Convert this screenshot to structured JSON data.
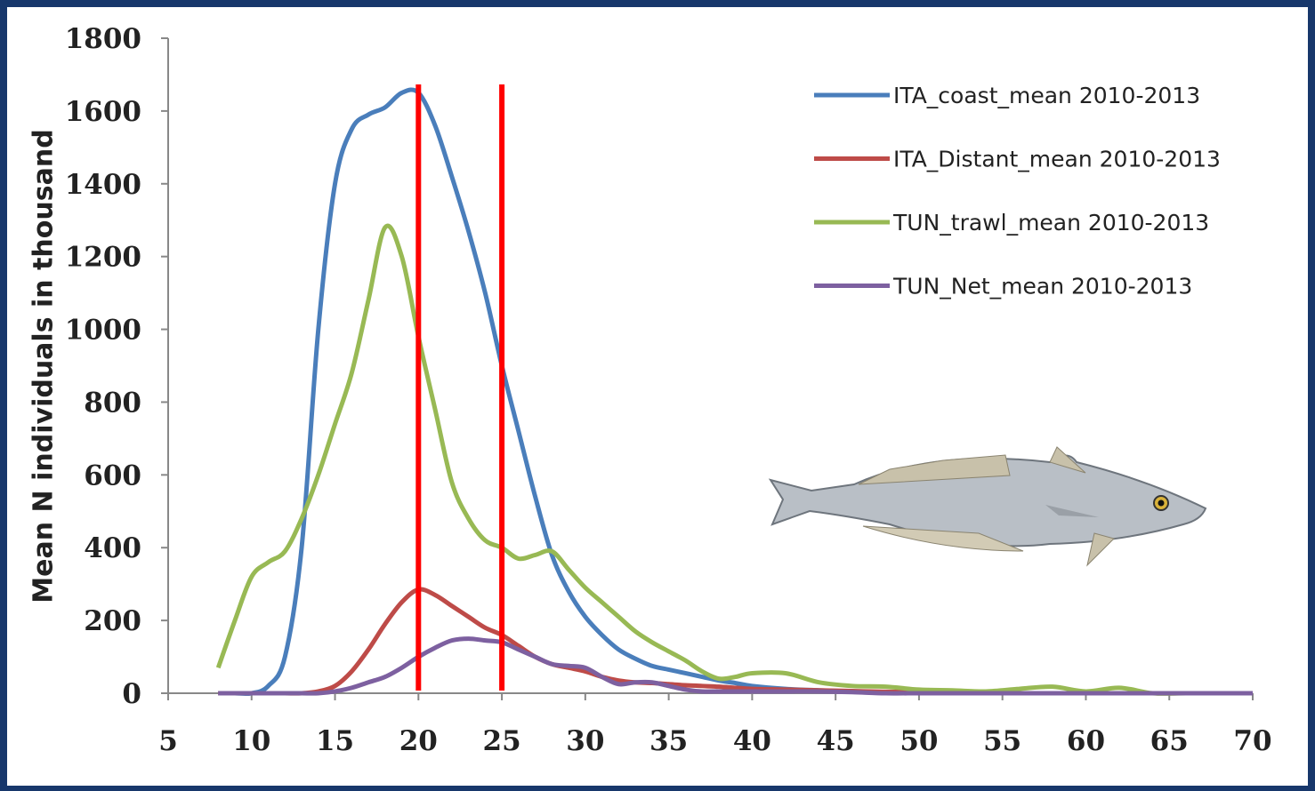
{
  "chart_data": {
    "type": "line",
    "ylabel": "Mean N individuals in thousand",
    "x": [
      8,
      9,
      10,
      11,
      12,
      13,
      14,
      15,
      16,
      17,
      18,
      19,
      20,
      21,
      22,
      23,
      24,
      25,
      26,
      27,
      28,
      29,
      30,
      31,
      32,
      33,
      34,
      35,
      36,
      37,
      38,
      39,
      40,
      42,
      44,
      46,
      48,
      50,
      52,
      54,
      56,
      58,
      60,
      62,
      64,
      66,
      68,
      70
    ],
    "series": [
      {
        "name": "ITA_coast_mean 2010-2013",
        "color": "#4a7ebb",
        "values": [
          0,
          0,
          0,
          20,
          100,
          400,
          1000,
          1400,
          1550,
          1590,
          1610,
          1650,
          1650,
          1560,
          1420,
          1270,
          1100,
          900,
          720,
          540,
          380,
          280,
          210,
          160,
          120,
          95,
          75,
          65,
          55,
          45,
          35,
          28,
          20,
          12,
          8,
          5,
          3,
          2,
          1,
          0,
          0,
          0,
          0,
          0,
          0,
          0,
          0,
          0
        ]
      },
      {
        "name": "ITA_Distant_mean 2010-2013",
        "color": "#be4b48",
        "values": [
          0,
          0,
          0,
          0,
          0,
          0,
          5,
          20,
          60,
          120,
          190,
          250,
          285,
          270,
          240,
          210,
          180,
          160,
          130,
          100,
          80,
          70,
          60,
          45,
          35,
          30,
          28,
          25,
          22,
          20,
          18,
          15,
          12,
          10,
          8,
          6,
          4,
          3,
          2,
          1,
          0,
          0,
          0,
          0,
          0,
          0,
          0,
          0
        ]
      },
      {
        "name": "TUN_trawl_mean 2010-2013",
        "color": "#98b954",
        "values": [
          70,
          200,
          320,
          360,
          390,
          480,
          600,
          740,
          880,
          1080,
          1280,
          1200,
          980,
          780,
          580,
          480,
          420,
          400,
          370,
          380,
          390,
          340,
          290,
          250,
          210,
          170,
          140,
          115,
          90,
          60,
          40,
          45,
          55,
          55,
          30,
          20,
          18,
          10,
          8,
          5,
          12,
          18,
          5,
          15,
          0,
          0,
          0,
          0
        ]
      },
      {
        "name": "TUN_Net_mean 2010-2013",
        "color": "#7d60a0",
        "values": [
          0,
          0,
          0,
          0,
          0,
          0,
          0,
          5,
          15,
          30,
          45,
          70,
          100,
          125,
          145,
          150,
          145,
          140,
          120,
          100,
          80,
          75,
          70,
          45,
          25,
          30,
          30,
          20,
          10,
          5,
          5,
          5,
          5,
          5,
          5,
          3,
          0,
          0,
          0,
          0,
          0,
          0,
          0,
          0,
          0,
          0,
          0,
          0
        ]
      }
    ],
    "reference_lines": {
      "x": [
        20,
        25
      ],
      "color": "#ff0000"
    },
    "xlim": [
      5,
      70
    ],
    "xticks": [
      5,
      10,
      15,
      20,
      25,
      30,
      35,
      40,
      45,
      50,
      55,
      60,
      65,
      70
    ],
    "ylim": [
      0,
      1800
    ],
    "yticks": [
      0,
      200,
      400,
      600,
      800,
      1000,
      1200,
      1400,
      1600,
      1800
    ],
    "legend": "top-right"
  }
}
